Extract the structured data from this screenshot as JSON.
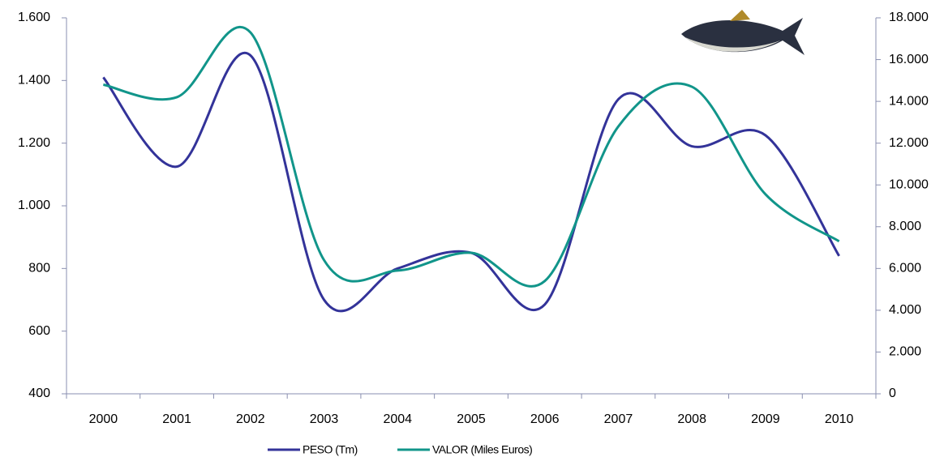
{
  "chart_data": {
    "type": "line",
    "categories": [
      "2000",
      "2001",
      "2002",
      "2003",
      "2004",
      "2005",
      "2006",
      "2007",
      "2008",
      "2009",
      "2010"
    ],
    "series": [
      {
        "name": "PESO (Tm)",
        "color": "#333399",
        "values": [
          1410,
          1125,
          1480,
          700,
          800,
          850,
          685,
          1340,
          1190,
          1225,
          840
        ]
      },
      {
        "name": "VALOR (Miles Euros)",
        "color": "#11958a",
        "axis": "y2",
        "values": [
          14800,
          14200,
          17300,
          6400,
          5900,
          6750,
          5400,
          12800,
          14700,
          9550,
          7300
        ]
      }
    ],
    "ylim": [
      400,
      1600
    ],
    "yticks": [
      400,
      600,
      800,
      {
        "value": 1000,
        "label": "1.000"
      },
      {
        "value": 1200,
        "label": "1.200"
      },
      {
        "value": 1400,
        "label": "1.400"
      },
      {
        "value": 1600,
        "label": "1.600"
      }
    ],
    "y2lim": [
      0,
      18000
    ],
    "y2ticks": [
      0,
      {
        "value": 2000,
        "label": "2.000"
      },
      {
        "value": 4000,
        "label": "4.000"
      },
      {
        "value": 6000,
        "label": "6.000"
      },
      {
        "value": 8000,
        "label": "8.000"
      },
      {
        "value": 10000,
        "label": "10.000"
      },
      {
        "value": 12000,
        "label": "12.000"
      },
      {
        "value": 14000,
        "label": "14.000"
      },
      {
        "value": 16000,
        "label": "16.000"
      },
      {
        "value": 18000,
        "label": "18.000"
      }
    ],
    "legend": "bottom",
    "grid": false
  }
}
